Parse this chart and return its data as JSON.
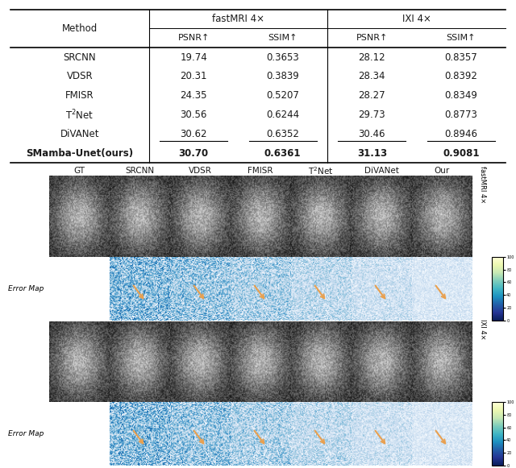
{
  "table": {
    "methods": [
      "SRCNN",
      "VDSR",
      "FMISR",
      "T2Net",
      "DiVANet",
      "SMamba-Unet(ours)"
    ],
    "fastmri_psnr": [
      "19.74",
      "20.31",
      "24.35",
      "30.56",
      "30.62",
      "30.70"
    ],
    "fastmri_ssim": [
      "0.3653",
      "0.3839",
      "0.5207",
      "0.6244",
      "0.6352",
      "0.6361"
    ],
    "ixi_psnr": [
      "28.12",
      "28.34",
      "28.27",
      "29.73",
      "30.46",
      "31.13"
    ],
    "ixi_ssim": [
      "0.8357",
      "0.8392",
      "0.8349",
      "0.8773",
      "0.8946",
      "0.9081"
    ],
    "underline_row": 4,
    "bold_row": 5
  },
  "image_col_labels": [
    "GT",
    "SRCNN",
    "VDSR",
    "FMISR",
    "T2Net",
    "DiVANet",
    "Our"
  ],
  "bg_color": "#ffffff",
  "text_color": "#1a1a1a",
  "arrow_color": "#e8a050"
}
